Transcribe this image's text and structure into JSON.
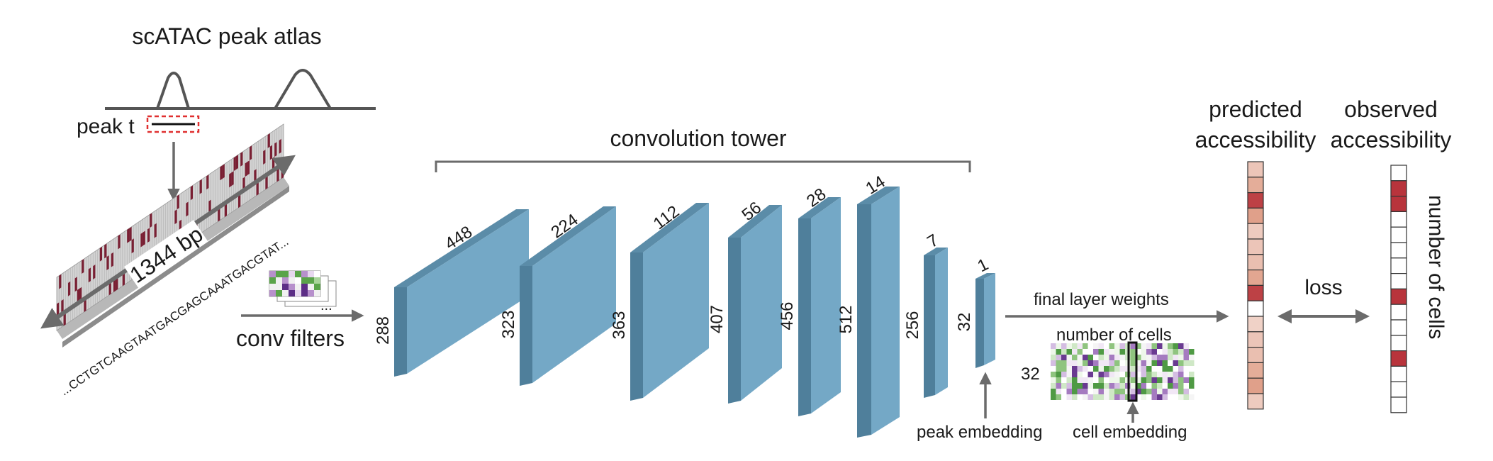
{
  "atlas": {
    "title": "scATAC peak atlas",
    "peak_label": "peak t"
  },
  "sequence": {
    "length_label": "1344 bp",
    "text": "...CCTGTCAAGTAATGACGAGCAAATGACGTAT..."
  },
  "filters": {
    "label": "conv filters",
    "dots": "..."
  },
  "tower": {
    "title": "convolution tower",
    "layers": [
      {
        "length": "448",
        "channels": "288"
      },
      {
        "length": "224",
        "channels": "323"
      },
      {
        "length": "112",
        "channels": "363"
      },
      {
        "length": "56",
        "channels": "407"
      },
      {
        "length": "28",
        "channels": "456"
      },
      {
        "length": "14",
        "channels": "512"
      },
      {
        "length": "7",
        "channels": "256"
      },
      {
        "length": "1",
        "channels": "32"
      }
    ]
  },
  "output": {
    "weights_label": "final layer weights",
    "weights_rows": "32",
    "weights_cols": "number of cells",
    "peak_embedding": "peak embedding",
    "cell_embedding": "cell embedding",
    "predicted_line1": "predicted",
    "predicted_line2": "accessibility",
    "observed_line1": "observed",
    "observed_line2": "accessibility",
    "loss": "loss",
    "cells_axis": "number of cells"
  },
  "colors": {
    "block_front": "#74a8c6",
    "block_top": "#5b8ca8",
    "block_side": "#4f7f9b",
    "arrow": "#6b6b6b",
    "onehot": "#7a1f33",
    "peak_box": "#e03030"
  },
  "predicted_levels": [
    0.25,
    0.45,
    0.95,
    0.55,
    0.2,
    0.25,
    0.3,
    0.5,
    0.95,
    0.0,
    0.15,
    0.25,
    0.3,
    0.45,
    0.55,
    0.2
  ],
  "observed_levels": [
    0,
    1,
    1,
    0,
    0,
    0,
    0,
    0,
    1,
    0,
    0,
    0,
    1,
    0,
    0,
    0
  ]
}
